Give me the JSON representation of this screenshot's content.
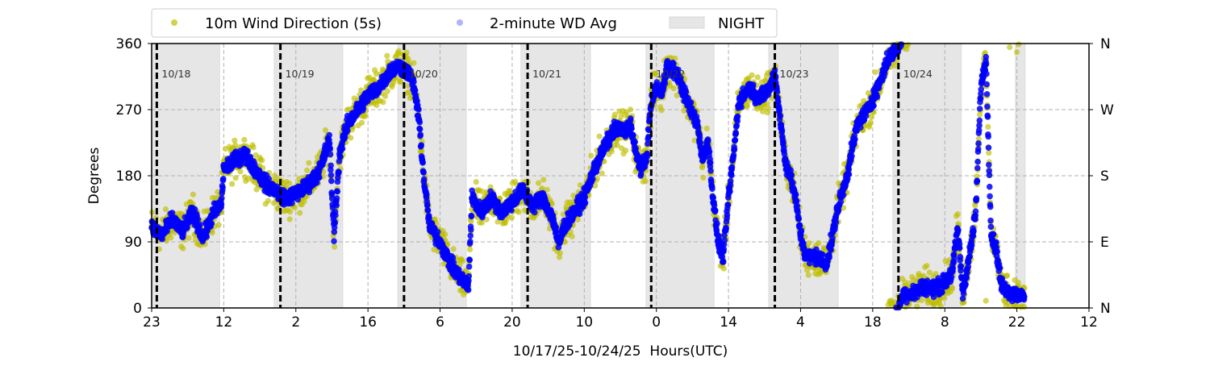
{
  "chart_data": {
    "type": "scatter",
    "title": "",
    "xlabel": "10/17/25-10/24/25  Hours(UTC)",
    "ylabel": "Degrees",
    "xlim": [
      0,
      182
    ],
    "ylim": [
      0,
      360
    ],
    "x_units": "hours since 10/17/25 22:00 UTC",
    "x_ticks": [
      {
        "x": 0,
        "label": "23"
      },
      {
        "x": 14,
        "label": "12"
      },
      {
        "x": 28,
        "label": "2"
      },
      {
        "x": 42,
        "label": "16"
      },
      {
        "x": 56,
        "label": "6"
      },
      {
        "x": 70,
        "label": "20"
      },
      {
        "x": 84,
        "label": "10"
      },
      {
        "x": 98,
        "label": "0"
      },
      {
        "x": 112,
        "label": "14"
      },
      {
        "x": 126,
        "label": "4"
      },
      {
        "x": 140,
        "label": "18"
      },
      {
        "x": 154,
        "label": "8"
      },
      {
        "x": 168,
        "label": "22"
      },
      {
        "x": 182,
        "label": "12"
      }
    ],
    "y_ticks": [
      {
        "y": 0,
        "label": "0"
      },
      {
        "y": 90,
        "label": "90"
      },
      {
        "y": 180,
        "label": "180"
      },
      {
        "y": 270,
        "label": "270"
      },
      {
        "y": 360,
        "label": "360"
      }
    ],
    "y_ticks_right": [
      {
        "y": 0,
        "label": "N"
      },
      {
        "y": 90,
        "label": "E"
      },
      {
        "y": 180,
        "label": "S"
      },
      {
        "y": 270,
        "label": "W"
      },
      {
        "y": 360,
        "label": "N"
      }
    ],
    "grid": true,
    "legend": {
      "placement": "top",
      "entries": [
        "10m Wind Direction (5s)",
        "2-minute WD Avg",
        "NIGHT"
      ]
    },
    "colors": {
      "wd5s": "#bfbf00",
      "avg": "#0000ff",
      "night": "#e6e6e6"
    },
    "day_markers": [
      {
        "x": 1,
        "label": "10/18"
      },
      {
        "x": 25,
        "label": "10/19"
      },
      {
        "x": 49,
        "label": "10/20"
      },
      {
        "x": 73,
        "label": "10/21"
      },
      {
        "x": 97,
        "label": "10/22"
      },
      {
        "x": 121,
        "label": "10/23"
      },
      {
        "x": 145,
        "label": "10/24"
      }
    ],
    "night_periods": [
      [
        0,
        13.2
      ],
      [
        23.8,
        37.1
      ],
      [
        47.8,
        61.1
      ],
      [
        71.7,
        85.2
      ],
      [
        96.0,
        109.2
      ],
      [
        119.8,
        133.3
      ],
      [
        143.9,
        157.2
      ],
      [
        167.7,
        169.6
      ]
    ],
    "series": [
      {
        "name": "2-minute WD Avg",
        "points": [
          [
            0,
            110
          ],
          [
            2,
            100
          ],
          [
            4,
            120
          ],
          [
            6,
            105
          ],
          [
            8,
            130
          ],
          [
            10,
            95
          ],
          [
            12,
            130
          ],
          [
            13.5,
            140
          ],
          [
            14,
            190
          ],
          [
            16,
            200
          ],
          [
            18,
            210
          ],
          [
            20,
            190
          ],
          [
            22,
            170
          ],
          [
            24,
            160
          ],
          [
            26,
            150
          ],
          [
            28,
            155
          ],
          [
            30,
            165
          ],
          [
            32,
            180
          ],
          [
            33,
            195
          ],
          [
            34.5,
            230
          ],
          [
            35.4,
            100
          ],
          [
            36.5,
            210
          ],
          [
            38,
            250
          ],
          [
            40,
            270
          ],
          [
            42,
            290
          ],
          [
            44,
            300
          ],
          [
            46,
            320
          ],
          [
            48,
            330
          ],
          [
            50,
            320
          ],
          [
            51,
            300
          ],
          [
            52,
            250
          ],
          [
            52.8,
            180
          ],
          [
            54,
            110
          ],
          [
            56,
            90
          ],
          [
            58,
            60
          ],
          [
            60,
            40
          ],
          [
            61.5,
            30
          ],
          [
            62.2,
            150
          ],
          [
            64,
            130
          ],
          [
            66,
            150
          ],
          [
            68,
            130
          ],
          [
            70,
            145
          ],
          [
            72,
            160
          ],
          [
            74,
            140
          ],
          [
            76,
            150
          ],
          [
            78,
            120
          ],
          [
            79,
            85
          ],
          [
            80,
            110
          ],
          [
            82,
            130
          ],
          [
            84,
            150
          ],
          [
            86,
            190
          ],
          [
            88,
            220
          ],
          [
            90,
            245
          ],
          [
            92,
            240
          ],
          [
            93,
            250
          ],
          [
            94,
            210
          ],
          [
            95,
            190
          ],
          [
            96,
            200
          ],
          [
            97,
            280
          ],
          [
            98,
            300
          ],
          [
            99,
            290
          ],
          [
            100,
            330
          ],
          [
            102,
            320
          ],
          [
            104,
            280
          ],
          [
            106,
            250
          ],
          [
            107,
            200
          ],
          [
            108,
            230
          ],
          [
            109,
            150
          ],
          [
            110,
            90
          ],
          [
            111,
            70
          ],
          [
            112,
            150
          ],
          [
            113,
            210
          ],
          [
            114,
            280
          ],
          [
            116,
            300
          ],
          [
            118,
            285
          ],
          [
            120,
            300
          ],
          [
            121,
            320
          ],
          [
            122,
            260
          ],
          [
            123,
            200
          ],
          [
            124,
            180
          ],
          [
            125,
            150
          ],
          [
            126,
            100
          ],
          [
            127,
            70
          ],
          [
            129,
            70
          ],
          [
            131,
            60
          ],
          [
            132,
            90
          ],
          [
            133,
            130
          ],
          [
            135,
            180
          ],
          [
            137,
            250
          ],
          [
            139,
            270
          ],
          [
            141,
            300
          ],
          [
            143,
            340
          ],
          [
            145,
            355
          ],
          [
            146,
            380
          ],
          [
            148,
            380
          ],
          [
            150,
            390
          ],
          [
            152,
            385
          ],
          [
            154,
            395
          ],
          [
            155.5,
            410
          ],
          [
            156.5,
            470
          ],
          [
            157.5,
            380
          ],
          [
            159,
            440
          ],
          [
            160,
            490
          ],
          [
            161,
            660
          ],
          [
            162,
            700
          ],
          [
            163,
            460
          ],
          [
            164,
            440
          ],
          [
            165,
            390
          ],
          [
            167,
            380
          ],
          [
            169.5,
            375
          ]
        ],
        "jitter_deg": 10
      },
      {
        "name": "10m Wind Direction (5s)",
        "follows": "2-minute WD Avg",
        "spread_deg": 28
      }
    ]
  }
}
